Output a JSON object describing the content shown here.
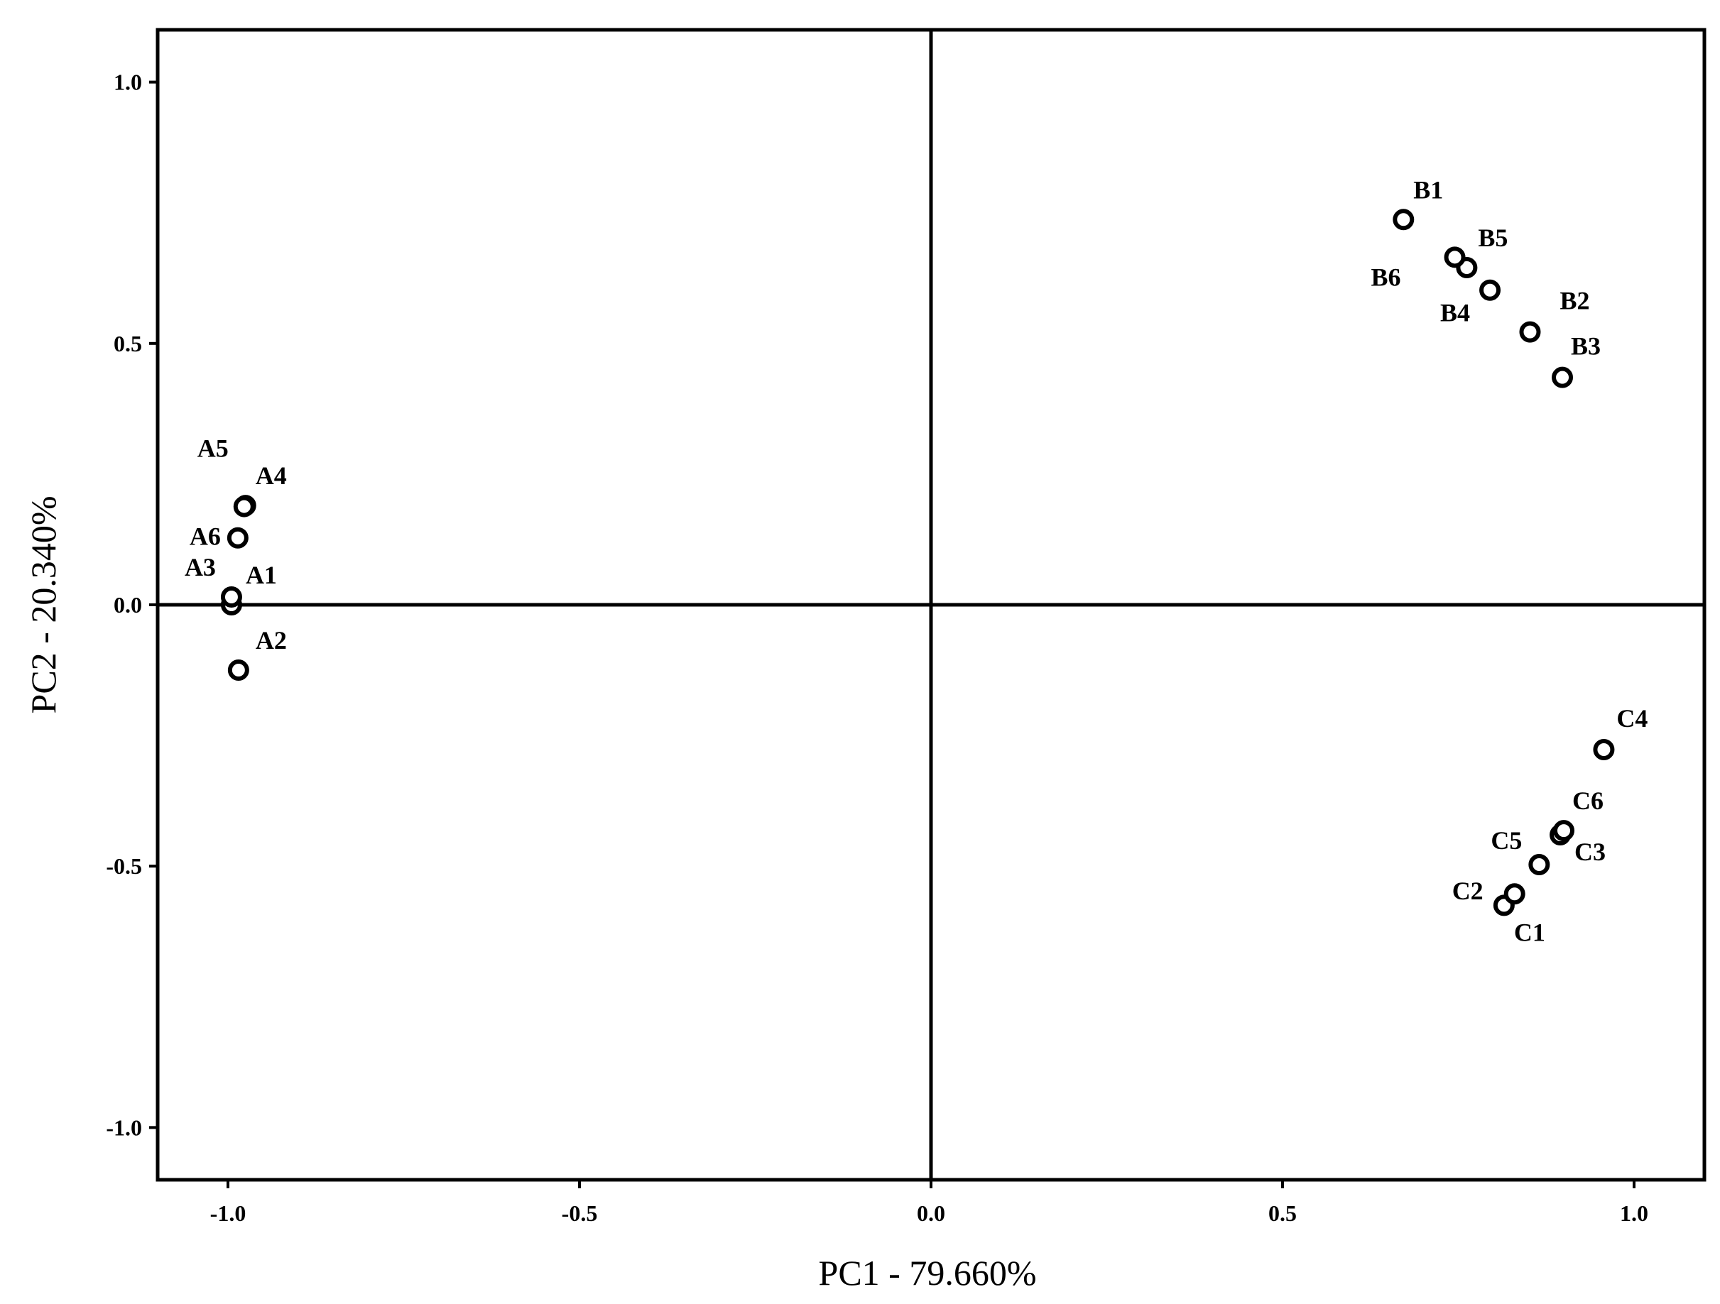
{
  "chart_data": {
    "type": "scatter",
    "xlabel": "PC1 - 79.660%",
    "ylabel": "PC2 - 20.340%",
    "xlim": [
      -1.1,
      1.1
    ],
    "ylim": [
      -1.1,
      1.1
    ],
    "x_ticks": [
      -1.0,
      -0.5,
      0.0,
      0.5,
      1.0
    ],
    "y_ticks": [
      -1.0,
      -0.5,
      0.0,
      0.5,
      1.0
    ],
    "x_tick_labels": [
      "-1.0",
      "-0.5",
      "0.0",
      "0.5",
      "1.0"
    ],
    "y_tick_labels": [
      "-1.0",
      "-0.5",
      "0.0",
      "0.5",
      "1.0"
    ],
    "grid": false,
    "reference_lines": {
      "x": 0,
      "y": 0
    },
    "points": [
      {
        "label": "A1",
        "x": -0.995,
        "y": 0.0
      },
      {
        "label": "A2",
        "x": -0.985,
        "y": -0.125
      },
      {
        "label": "A3",
        "x": -0.995,
        "y": 0.015
      },
      {
        "label": "A4",
        "x": -0.975,
        "y": 0.19
      },
      {
        "label": "A5",
        "x": -0.977,
        "y": 0.188
      },
      {
        "label": "A6",
        "x": -0.986,
        "y": 0.128
      },
      {
        "label": "B1",
        "x": 0.672,
        "y": 0.737
      },
      {
        "label": "B2",
        "x": 0.852,
        "y": 0.522
      },
      {
        "label": "B3",
        "x": 0.898,
        "y": 0.435
      },
      {
        "label": "B4",
        "x": 0.795,
        "y": 0.602
      },
      {
        "label": "B5",
        "x": 0.762,
        "y": 0.645
      },
      {
        "label": "B6",
        "x": 0.745,
        "y": 0.665
      },
      {
        "label": "C1",
        "x": 0.815,
        "y": -0.575
      },
      {
        "label": "C2",
        "x": 0.83,
        "y": -0.553
      },
      {
        "label": "C3",
        "x": 0.895,
        "y": -0.44
      },
      {
        "label": "C4",
        "x": 0.957,
        "y": -0.277
      },
      {
        "label": "C5",
        "x": 0.865,
        "y": -0.497
      },
      {
        "label": "C6",
        "x": 0.9,
        "y": -0.432
      }
    ]
  }
}
